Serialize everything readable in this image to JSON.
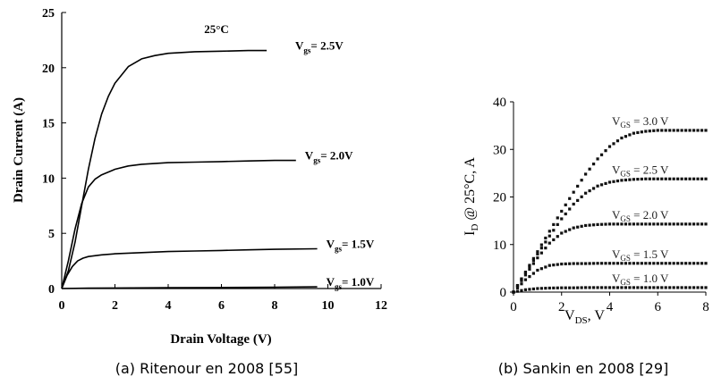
{
  "chart_data": [
    {
      "type": "line",
      "title": "25°C",
      "xlabel": "Drain Voltage (V)",
      "ylabel": "Drain Current (A)",
      "xlim": [
        0,
        12
      ],
      "ylim": [
        0,
        25
      ],
      "x_ticks": [
        "0",
        "2",
        "4",
        "6",
        "8",
        "10",
        "12"
      ],
      "y_ticks": [
        "0",
        "5",
        "10",
        "15",
        "20",
        "25"
      ],
      "grid": false,
      "caption": "(a) Ritenour en 2008 [55]",
      "series": [
        {
          "name": "V",
          "sub": "gs",
          "suffix": "= 2.5V",
          "x": [
            0,
            0.25,
            0.5,
            0.75,
            1.0,
            1.25,
            1.5,
            1.75,
            2.0,
            2.5,
            3.0,
            3.5,
            4.0,
            5.0,
            6.0,
            7.0,
            7.7
          ],
          "y": [
            0,
            1.6,
            4.2,
            7.5,
            10.8,
            13.6,
            15.8,
            17.4,
            18.6,
            20.1,
            20.8,
            21.1,
            21.3,
            21.45,
            21.5,
            21.55,
            21.55
          ]
        },
        {
          "name": "V",
          "sub": "gs",
          "suffix": "= 2.0V",
          "x": [
            0,
            0.25,
            0.5,
            0.75,
            1.0,
            1.25,
            1.5,
            2.0,
            2.5,
            3.0,
            4.0,
            5.0,
            6.0,
            7.0,
            8.0,
            8.8
          ],
          "y": [
            0,
            2.5,
            5.4,
            7.7,
            9.2,
            9.9,
            10.3,
            10.8,
            11.1,
            11.25,
            11.4,
            11.45,
            11.5,
            11.55,
            11.6,
            11.6
          ]
        },
        {
          "name": "V",
          "sub": "gs",
          "suffix": "= 1.5V",
          "x": [
            0,
            0.2,
            0.4,
            0.6,
            0.8,
            1.0,
            1.5,
            2.0,
            3.0,
            4.0,
            5.0,
            6.0,
            7.0,
            8.0,
            9.6
          ],
          "y": [
            0,
            1.2,
            2.0,
            2.5,
            2.75,
            2.9,
            3.05,
            3.15,
            3.25,
            3.35,
            3.4,
            3.45,
            3.5,
            3.55,
            3.6
          ]
        },
        {
          "name": "V",
          "sub": "gs",
          "suffix": "= 1.0V",
          "x": [
            0,
            1,
            2,
            4,
            6,
            8,
            9.6
          ],
          "y": [
            0,
            0.03,
            0.05,
            0.07,
            0.09,
            0.12,
            0.15
          ]
        }
      ]
    },
    {
      "type": "scatter",
      "xlabel": "V",
      "xlabel_sub": "DS",
      "xlabel_suffix": ", V",
      "ylabel": "I",
      "ylabel_sub": "D",
      "ylabel_suffix": " @ 25°C, A",
      "xlim": [
        0,
        8
      ],
      "ylim": [
        0,
        40
      ],
      "x_ticks": [
        "0",
        "2",
        "4",
        "6",
        "8"
      ],
      "y_ticks": [
        "0",
        "10",
        "20",
        "30",
        "40"
      ],
      "grid": false,
      "caption": "(b) Sankin en 2008 [29]",
      "series": [
        {
          "name": "V",
          "sub": "GS",
          "suffix": " = 3.0 V",
          "x": [
            0,
            0.5,
            1.0,
            1.5,
            2.0,
            2.5,
            3.0,
            3.5,
            4.0,
            4.5,
            5.0,
            5.5,
            6.0,
            6.5,
            7.0,
            7.5,
            8.0
          ],
          "y": [
            0,
            4.2,
            8.5,
            12.8,
            17.0,
            21.0,
            24.8,
            28.0,
            30.6,
            32.4,
            33.4,
            33.8,
            34.0,
            34.0,
            34.0,
            34.0,
            34.0
          ]
        },
        {
          "name": "V",
          "sub": "GS",
          "suffix": " = 2.5 V",
          "x": [
            0,
            0.5,
            1.0,
            1.5,
            2.0,
            2.5,
            3.0,
            3.5,
            4.0,
            4.5,
            5.0,
            5.5,
            6.0,
            6.5,
            7.0,
            7.5,
            8.0
          ],
          "y": [
            0,
            4.0,
            8.0,
            11.8,
            15.4,
            18.5,
            20.8,
            22.3,
            23.1,
            23.5,
            23.7,
            23.8,
            23.8,
            23.8,
            23.8,
            23.8,
            23.8
          ]
        },
        {
          "name": "V",
          "sub": "GS",
          "suffix": " = 2.0 V",
          "x": [
            0,
            0.5,
            1.0,
            1.5,
            2.0,
            2.5,
            3.0,
            3.5,
            4.0,
            4.5,
            5.0,
            5.5,
            6.0,
            6.5,
            7.0,
            7.5,
            8.0
          ],
          "y": [
            0,
            3.6,
            7.2,
            10.3,
            12.4,
            13.5,
            14.0,
            14.2,
            14.3,
            14.3,
            14.3,
            14.3,
            14.3,
            14.3,
            14.3,
            14.3,
            14.3
          ]
        },
        {
          "name": "V",
          "sub": "GS",
          "suffix": " = 1.5 V",
          "x": [
            0,
            0.5,
            1.0,
            1.5,
            2.0,
            2.5,
            3.0,
            3.5,
            4.0,
            4.5,
            5.0,
            5.5,
            6.0,
            6.5,
            7.0,
            7.5,
            8.0
          ],
          "y": [
            0,
            2.6,
            4.6,
            5.6,
            5.9,
            6.0,
            6.0,
            6.05,
            6.05,
            6.05,
            6.05,
            6.05,
            6.05,
            6.05,
            6.05,
            6.05,
            6.05
          ]
        },
        {
          "name": "V",
          "sub": "GS",
          "suffix": " = 1.0 V",
          "x": [
            0,
            0.5,
            1.0,
            1.5,
            2.0,
            2.5,
            3.0,
            3.5,
            4.0,
            4.5,
            5.0,
            5.5,
            6.0,
            6.5,
            7.0,
            7.5,
            8.0
          ],
          "y": [
            0,
            0.5,
            0.75,
            0.85,
            0.9,
            0.9,
            0.95,
            0.95,
            0.95,
            0.95,
            0.95,
            0.95,
            0.95,
            0.95,
            0.95,
            0.95,
            0.95
          ]
        }
      ]
    }
  ]
}
